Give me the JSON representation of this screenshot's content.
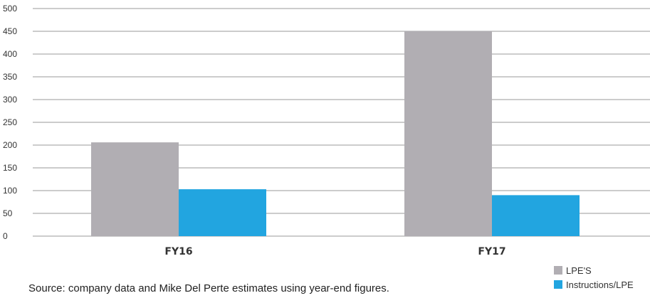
{
  "chart_data": {
    "type": "bar",
    "categories": [
      "FY16",
      "FY17"
    ],
    "series": [
      {
        "name": "LPE'S",
        "values": [
          206,
          451
        ],
        "color": "#b1aeb3"
      },
      {
        "name": "Instructions/LPE",
        "values": [
          103,
          90
        ],
        "color": "#22a5e0"
      }
    ],
    "ylim": [
      0,
      500
    ],
    "yticks": [
      0,
      50,
      100,
      150,
      200,
      250,
      300,
      350,
      400,
      450,
      500
    ],
    "grid": true,
    "legend": "bottom-right"
  },
  "source_note": "Source: company data and Mike Del Perte estimates using year-end figures."
}
